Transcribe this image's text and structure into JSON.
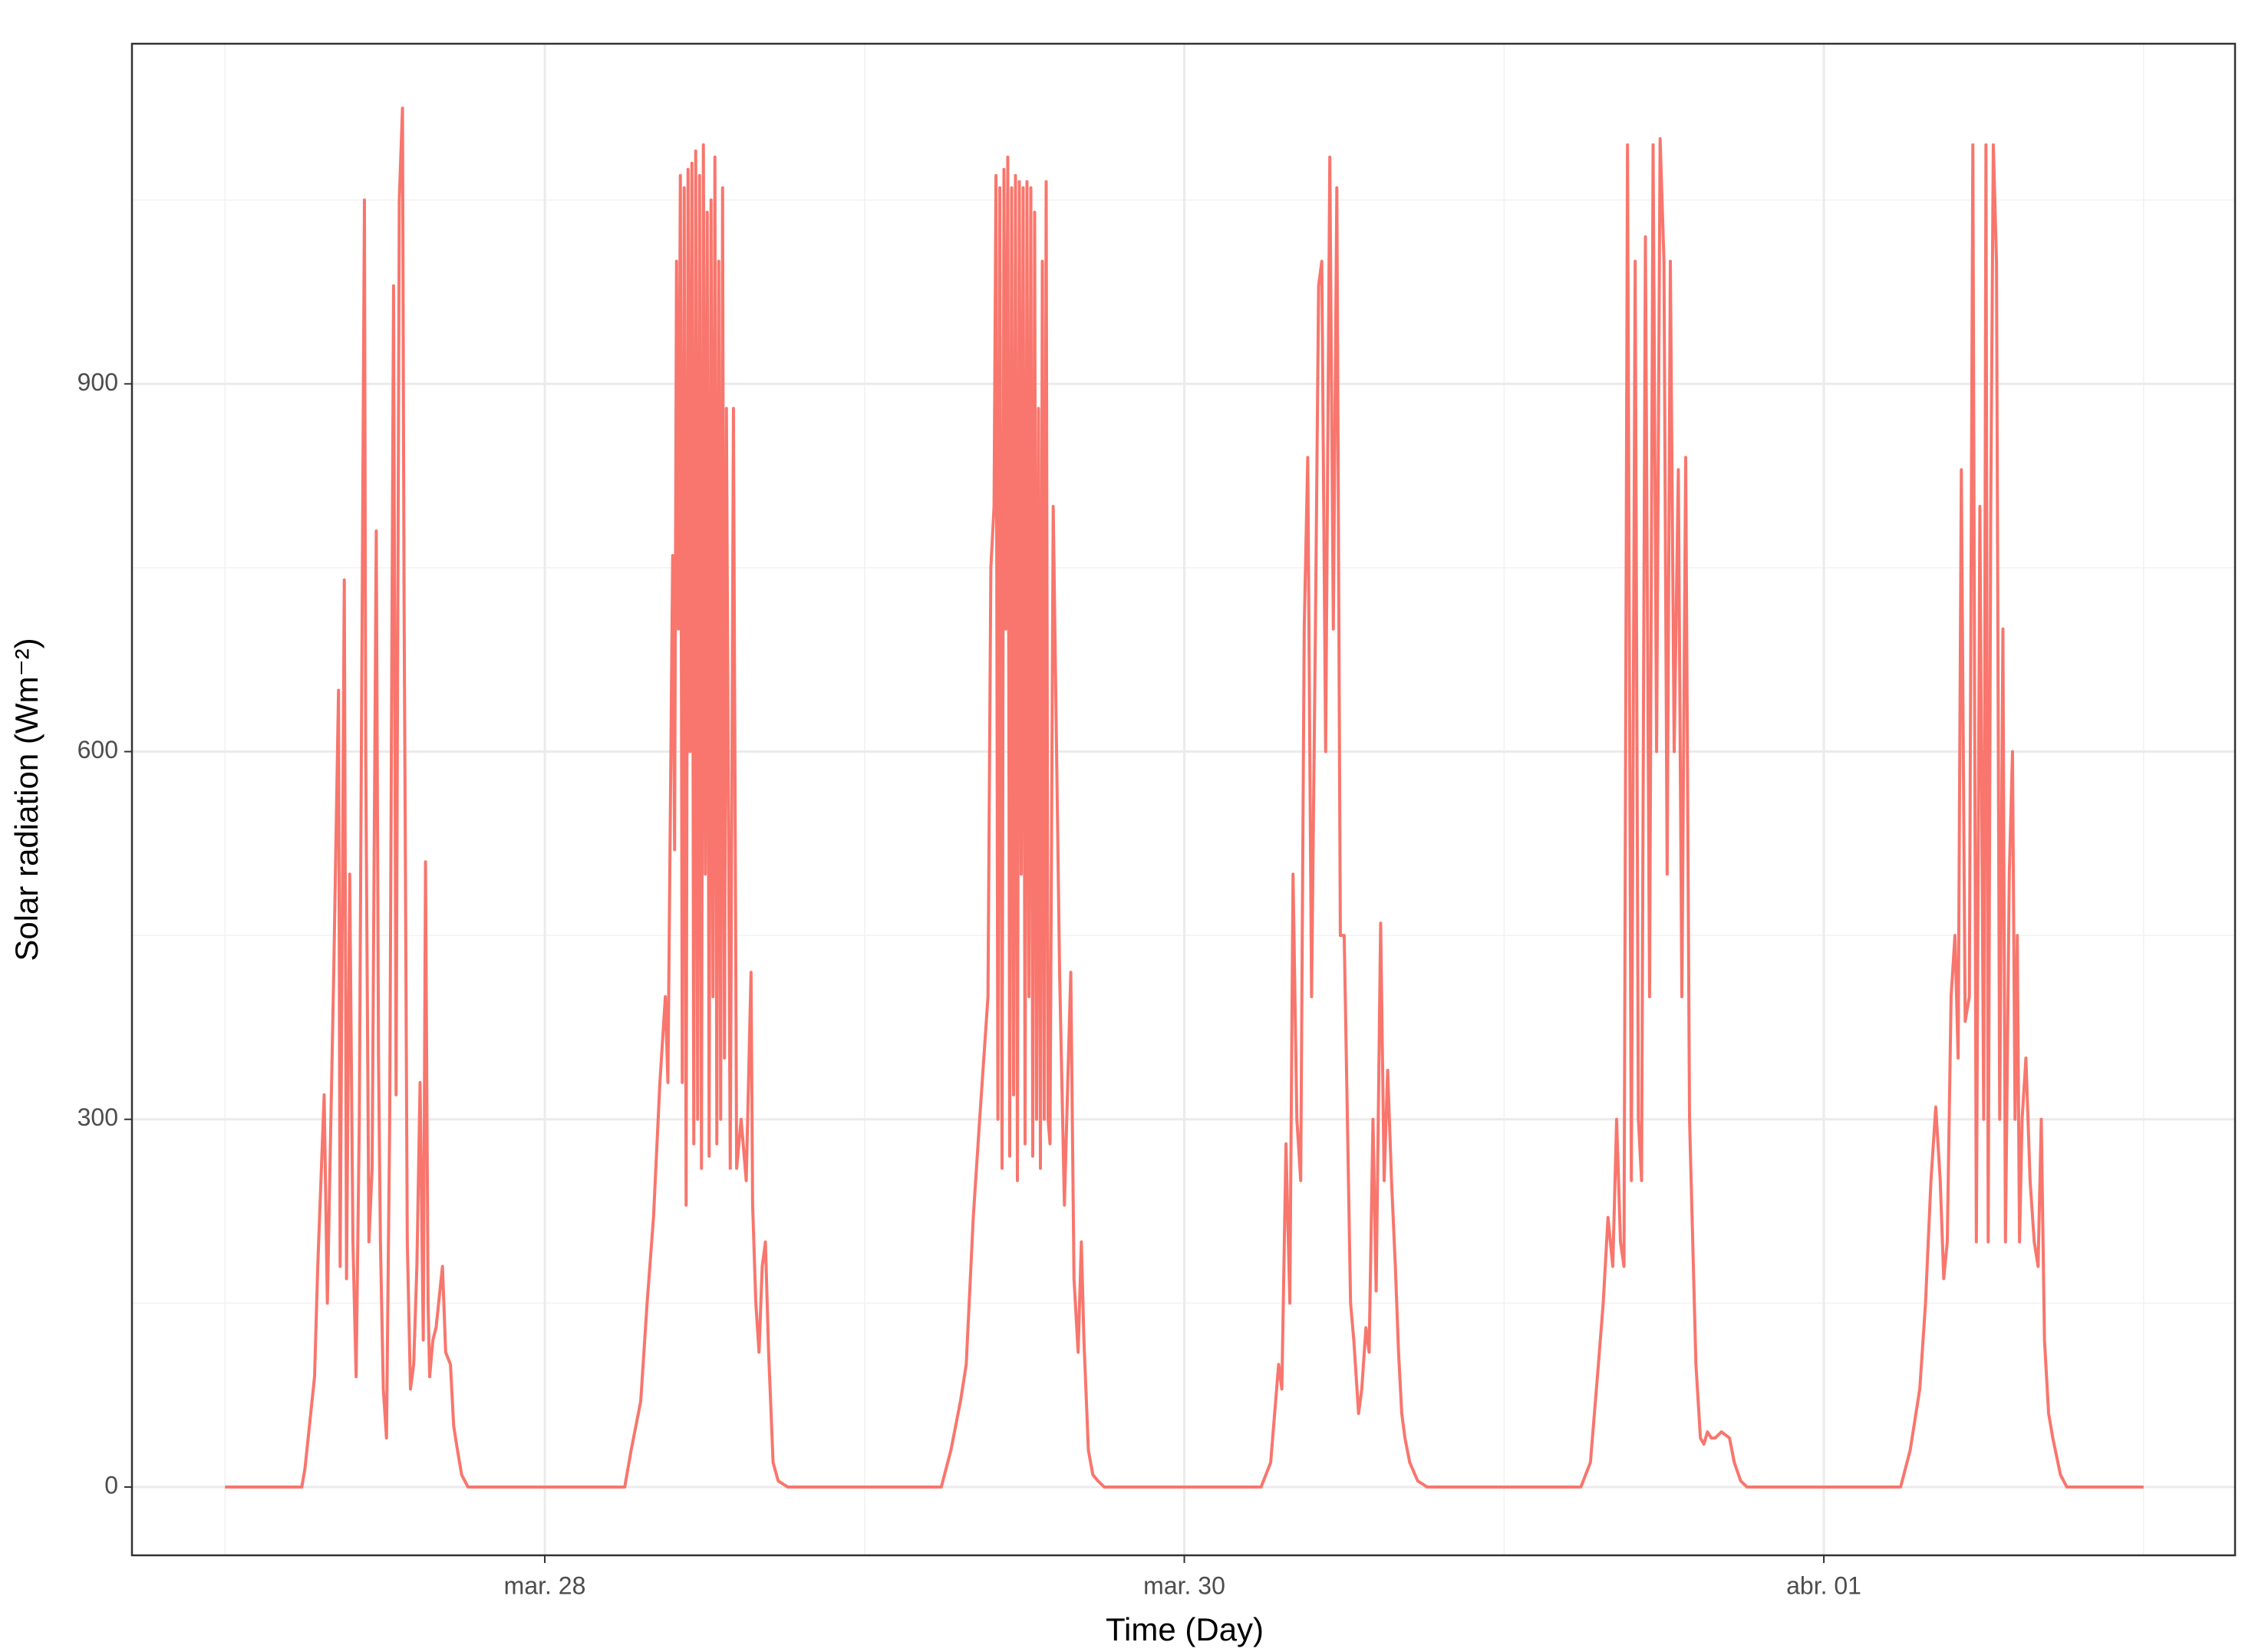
{
  "chart_data": {
    "type": "line",
    "x_label": "Time (Day)",
    "y_label": "Solar radiation (Wm⁻²)",
    "xlim": [
      26.709,
      33.286
    ],
    "ylim": [
      -55.7,
      1177.5
    ],
    "xticks": [
      {
        "value": 28,
        "label": "mar. 28"
      },
      {
        "value": 30,
        "label": "mar. 30"
      },
      {
        "value": 32,
        "label": "abr. 01"
      }
    ],
    "yticks": [
      0,
      300,
      600,
      900
    ],
    "xminor": [
      27,
      29,
      31,
      33
    ],
    "yminor": [
      150,
      450,
      750,
      1050
    ],
    "grid": true,
    "x": [
      27,
      27.24,
      27.25,
      27.28,
      27.29,
      27.31,
      27.32,
      27.34,
      27.355,
      27.36,
      27.373,
      27.38,
      27.39,
      27.4,
      27.41,
      27.42,
      27.436,
      27.44,
      27.45,
      27.46,
      27.473,
      27.48,
      27.486,
      27.495,
      27.505,
      27.515,
      27.527,
      27.535,
      27.545,
      27.555,
      27.56,
      27.57,
      27.58,
      27.59,
      27.6,
      27.61,
      27.62,
      27.627,
      27.635,
      27.64,
      27.65,
      27.66,
      27.68,
      27.69,
      27.705,
      27.715,
      27.727,
      27.74,
      27.76,
      28.25,
      28.27,
      28.3,
      28.32,
      28.34,
      28.36,
      28.377,
      28.385,
      28.4,
      28.406,
      28.412,
      28.418,
      28.424,
      28.43,
      28.436,
      28.442,
      28.448,
      28.454,
      28.46,
      28.466,
      28.472,
      28.478,
      28.484,
      28.49,
      28.496,
      28.502,
      28.508,
      28.514,
      28.52,
      28.526,
      28.532,
      28.538,
      28.544,
      28.55,
      28.556,
      28.562,
      28.568,
      28.58,
      28.59,
      28.6,
      28.614,
      28.63,
      28.645,
      28.65,
      28.66,
      28.67,
      28.68,
      28.69,
      28.7,
      28.714,
      28.73,
      28.76,
      29.24,
      29.27,
      29.3,
      29.318,
      29.34,
      29.36,
      29.386,
      29.395,
      29.405,
      29.411,
      29.417,
      29.423,
      29.43,
      29.436,
      29.442,
      29.448,
      29.454,
      29.46,
      29.466,
      29.472,
      29.478,
      29.484,
      29.49,
      29.496,
      29.502,
      29.508,
      29.514,
      29.52,
      29.526,
      29.532,
      29.538,
      29.544,
      29.55,
      29.556,
      29.562,
      29.568,
      29.574,
      29.58,
      29.59,
      29.61,
      29.625,
      29.645,
      29.655,
      29.668,
      29.678,
      29.686,
      29.7,
      29.714,
      29.73,
      29.75,
      30.24,
      30.27,
      30.295,
      30.305,
      30.318,
      30.33,
      30.34,
      30.352,
      30.364,
      30.375,
      30.386,
      30.398,
      30.41,
      30.42,
      30.43,
      30.442,
      30.455,
      30.466,
      30.477,
      30.488,
      30.5,
      30.51,
      30.52,
      30.53,
      30.545,
      30.555,
      30.568,
      30.578,
      30.59,
      30.6,
      30.614,
      30.625,
      30.636,
      30.648,
      30.66,
      30.67,
      30.68,
      30.69,
      30.705,
      30.73,
      30.76,
      31.24,
      31.27,
      31.295,
      31.31,
      31.325,
      31.34,
      31.352,
      31.364,
      31.375,
      31.386,
      31.398,
      31.41,
      31.42,
      31.43,
      31.442,
      31.455,
      31.466,
      31.477,
      31.488,
      31.5,
      31.51,
      31.52,
      31.532,
      31.545,
      31.556,
      31.568,
      31.58,
      31.59,
      31.6,
      31.614,
      31.625,
      31.636,
      31.648,
      31.66,
      31.68,
      31.705,
      31.72,
      31.74,
      31.76,
      32.24,
      32.27,
      32.3,
      32.318,
      32.335,
      32.35,
      32.364,
      32.375,
      32.386,
      32.398,
      32.41,
      32.42,
      32.43,
      32.442,
      32.455,
      32.466,
      32.477,
      32.488,
      32.5,
      32.507,
      32.514,
      32.522,
      32.53,
      32.54,
      32.55,
      32.56,
      32.568,
      32.58,
      32.59,
      32.598,
      32.605,
      32.612,
      32.62,
      32.632,
      32.645,
      32.658,
      32.67,
      32.68,
      32.69,
      32.703,
      32.716,
      32.74,
      32.76,
      33
    ],
    "series": [
      {
        "color": "#f8766d",
        "values": [
          0,
          0,
          15,
          90,
          180,
          320,
          150,
          420,
          650,
          180,
          740,
          170,
          500,
          200,
          90,
          300,
          1050,
          600,
          200,
          260,
          780,
          350,
          200,
          80,
          40,
          300,
          980,
          320,
          1050,
          1125,
          720,
          200,
          80,
          100,
          180,
          330,
          120,
          510,
          150,
          90,
          120,
          130,
          180,
          110,
          100,
          50,
          30,
          10,
          0,
          0,
          30,
          70,
          150,
          220,
          330,
          400,
          330,
          760,
          520,
          1000,
          700,
          1070,
          330,
          1060,
          230,
          1075,
          600,
          1080,
          280,
          1090,
          300,
          1070,
          260,
          1095,
          500,
          1040,
          270,
          1050,
          400,
          1085,
          280,
          1000,
          300,
          1060,
          350,
          880,
          260,
          880,
          260,
          300,
          250,
          420,
          230,
          150,
          110,
          180,
          200,
          110,
          20,
          5,
          0,
          0,
          30,
          70,
          100,
          220,
          300,
          400,
          750,
          800,
          1070,
          300,
          1060,
          260,
          1075,
          700,
          1085,
          270,
          1060,
          320,
          1070,
          250,
          1065,
          500,
          1060,
          280,
          1065,
          400,
          1060,
          270,
          1040,
          300,
          880,
          260,
          1000,
          300,
          1065,
          300,
          280,
          800,
          420,
          230,
          420,
          170,
          110,
          200,
          120,
          30,
          10,
          5,
          0,
          0,
          20,
          100,
          80,
          280,
          150,
          500,
          300,
          250,
          700,
          840,
          400,
          700,
          980,
          1000,
          600,
          1085,
          700,
          1060,
          450,
          450,
          300,
          150,
          120,
          60,
          80,
          130,
          110,
          300,
          160,
          460,
          250,
          340,
          250,
          180,
          110,
          60,
          40,
          20,
          5,
          0,
          0,
          20,
          100,
          150,
          220,
          180,
          300,
          200,
          180,
          1095,
          250,
          1000,
          300,
          250,
          1020,
          400,
          1095,
          600,
          1100,
          1000,
          500,
          1000,
          600,
          830,
          400,
          840,
          300,
          200,
          100,
          40,
          35,
          45,
          40,
          40,
          45,
          40,
          20,
          5,
          0,
          0,
          30,
          80,
          150,
          250,
          310,
          250,
          170,
          200,
          400,
          450,
          350,
          830,
          380,
          400,
          1095,
          200,
          800,
          300,
          1095,
          200,
          800,
          1095,
          1000,
          300,
          700,
          200,
          500,
          600,
          300,
          450,
          200,
          300,
          350,
          250,
          200,
          180,
          300,
          120,
          60,
          40,
          10,
          0,
          0
        ]
      }
    ]
  }
}
